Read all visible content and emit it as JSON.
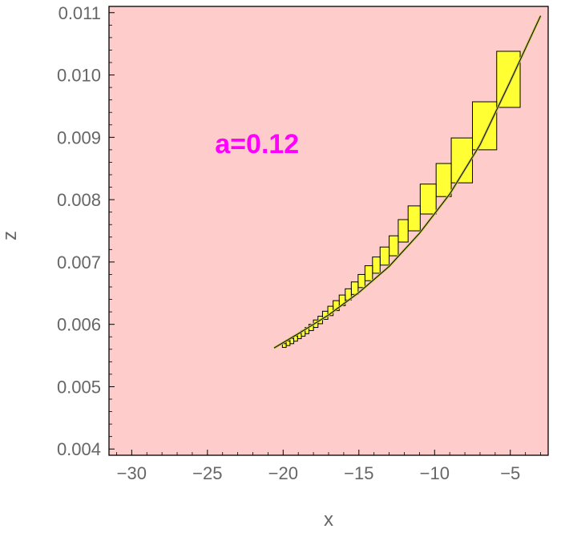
{
  "chart_data": {
    "type": "scatter",
    "xlabel": "x",
    "ylabel": "z",
    "xlim": [
      -31.5,
      -2.5
    ],
    "ylim": [
      0.0039,
      0.0111
    ],
    "x_ticks": [
      -30,
      -25,
      -20,
      -15,
      -10,
      -5
    ],
    "x_tick_labels": [
      "−30",
      "−25",
      "−20",
      "−15",
      "−10",
      "−5"
    ],
    "y_ticks": [
      0.004,
      0.005,
      0.006,
      0.007,
      0.008,
      0.009,
      0.01,
      0.011
    ],
    "y_tick_labels": [
      "0.004",
      "0.005",
      "0.006",
      "0.007",
      "0.008",
      "0.009",
      "0.010",
      "0.011"
    ],
    "grid": false,
    "annotation": {
      "text": "a=0.12",
      "x": -24.5,
      "y": 0.0089,
      "color": "#ff00ff"
    },
    "colors": {
      "background": "#ffcccc",
      "box_fill": "#ffff33",
      "box_stroke": "#000000",
      "curve": "#000000",
      "center_line": "#c8c84a"
    },
    "curve": {
      "x": [
        -20.6,
        -19.0,
        -17.0,
        -15.0,
        -13.0,
        -11.0,
        -9.0,
        -7.0,
        -5.0,
        -3.0
      ],
      "z": [
        0.00562,
        0.00585,
        0.00615,
        0.00651,
        0.00693,
        0.00746,
        0.00809,
        0.00888,
        0.0099,
        0.01095
      ]
    },
    "boxes": [
      {
        "x": [
          -5.9,
          -4.35
        ],
        "z": [
          0.00948,
          0.01038
        ]
      },
      {
        "x": [
          -7.5,
          -5.9
        ],
        "z": [
          0.0088,
          0.00957
        ]
      },
      {
        "x": [
          -8.9,
          -7.5
        ],
        "z": [
          0.00827,
          0.00899
        ]
      },
      {
        "x": [
          -9.9,
          -8.9
        ],
        "z": [
          0.00805,
          0.00858
        ]
      },
      {
        "x": [
          -10.95,
          -9.9
        ],
        "z": [
          0.00777,
          0.00825
        ]
      },
      {
        "x": [
          -11.75,
          -10.95
        ],
        "z": [
          0.0075,
          0.0079
        ]
      },
      {
        "x": [
          -12.4,
          -11.75
        ],
        "z": [
          0.00732,
          0.00768
        ]
      },
      {
        "x": [
          -13.0,
          -12.4
        ],
        "z": [
          0.0071,
          0.00742
        ]
      },
      {
        "x": [
          -13.6,
          -13.0
        ],
        "z": [
          0.00695,
          0.00724
        ]
      },
      {
        "x": [
          -14.1,
          -13.6
        ],
        "z": [
          0.00682,
          0.00708
        ]
      },
      {
        "x": [
          -14.6,
          -14.1
        ],
        "z": [
          0.0067,
          0.00694
        ]
      },
      {
        "x": [
          -15.05,
          -14.6
        ],
        "z": [
          0.00659,
          0.0068
        ]
      },
      {
        "x": [
          -15.5,
          -15.05
        ],
        "z": [
          0.00648,
          0.00668
        ]
      },
      {
        "x": [
          -15.9,
          -15.5
        ],
        "z": [
          0.00639,
          0.00657
        ]
      },
      {
        "x": [
          -16.3,
          -15.9
        ],
        "z": [
          0.0063,
          0.00647
        ]
      },
      {
        "x": [
          -16.7,
          -16.3
        ],
        "z": [
          0.00622,
          0.00638
        ]
      },
      {
        "x": [
          -17.05,
          -16.7
        ],
        "z": [
          0.00614,
          0.00629
        ]
      },
      {
        "x": [
          -17.4,
          -17.05
        ],
        "z": [
          0.00608,
          0.00621
        ]
      },
      {
        "x": [
          -17.7,
          -17.4
        ],
        "z": [
          0.00601,
          0.00613
        ]
      },
      {
        "x": [
          -18.0,
          -17.7
        ],
        "z": [
          0.00595,
          0.00607
        ]
      },
      {
        "x": [
          -18.3,
          -18.0
        ],
        "z": [
          0.0059,
          0.006
        ]
      },
      {
        "x": [
          -18.55,
          -18.3
        ],
        "z": [
          0.00585,
          0.00595
        ]
      },
      {
        "x": [
          -18.8,
          -18.55
        ],
        "z": [
          0.00581,
          0.0059
        ]
      },
      {
        "x": [
          -19.05,
          -18.8
        ],
        "z": [
          0.00577,
          0.00585
        ]
      },
      {
        "x": [
          -19.3,
          -19.05
        ],
        "z": [
          0.00573,
          0.00581
        ]
      },
      {
        "x": [
          -19.55,
          -19.3
        ],
        "z": [
          0.00569,
          0.00577
        ]
      },
      {
        "x": [
          -19.8,
          -19.55
        ],
        "z": [
          0.00566,
          0.00573
        ]
      },
      {
        "x": [
          -20.05,
          -19.8
        ],
        "z": [
          0.00563,
          0.00569
        ]
      }
    ]
  }
}
